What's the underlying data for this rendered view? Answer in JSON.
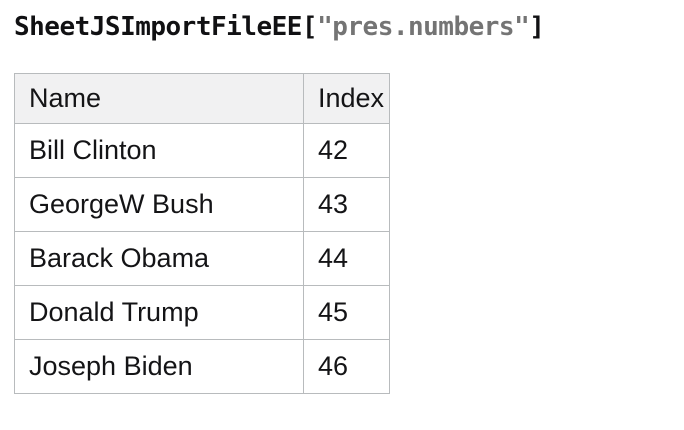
{
  "title": {
    "code_prefix": "SheetJSImportFileEE[",
    "string_literal": "\"pres.numbers\"",
    "code_suffix": "]"
  },
  "table": {
    "columns": [
      "Name",
      "Index"
    ],
    "rows": [
      {
        "name": "Bill Clinton",
        "index": "42"
      },
      {
        "name": "GeorgeW Bush",
        "index": "43"
      },
      {
        "name": "Barack Obama",
        "index": "44"
      },
      {
        "name": "Donald Trump",
        "index": "45"
      },
      {
        "name": "Joseph Biden",
        "index": "46"
      }
    ]
  },
  "colors": {
    "title_code": "#111113",
    "title_string": "#747474",
    "table_border": "#b8bbbd",
    "header_background": "#f1f1f2",
    "cell_text": "#141416",
    "page_background": "#ffffff"
  }
}
